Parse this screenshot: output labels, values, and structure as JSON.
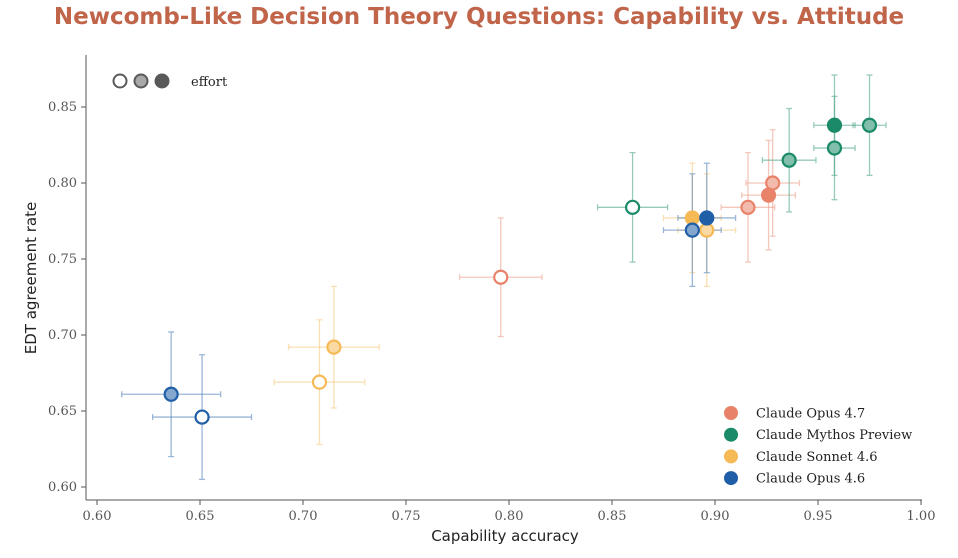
{
  "chart_data": {
    "type": "scatter",
    "title": "Newcomb-Like Decision Theory Questions: Capability vs. Attitude",
    "xlabel": "Capability accuracy",
    "ylabel": "EDT agreement rate",
    "xlim": [
      0.6,
      1.0
    ],
    "ylim": [
      0.6,
      0.87
    ],
    "xticks": [
      "0.60",
      "0.65",
      "0.70",
      "0.75",
      "0.80",
      "0.85",
      "0.90",
      "0.95",
      "1.00"
    ],
    "yticks": [
      "0.60",
      "0.65",
      "0.70",
      "0.75",
      "0.80",
      "0.85"
    ],
    "effort_legend": {
      "label": "effort",
      "levels": [
        "low",
        "medium",
        "high"
      ]
    },
    "series": [
      {
        "name": "Claude Opus 4.7",
        "color": "#e8836a",
        "points": [
          {
            "effort": "low",
            "x": 0.796,
            "y": 0.738,
            "xerr": 0.02,
            "yerr": 0.039
          },
          {
            "effort": "medium",
            "x": 0.916,
            "y": 0.784,
            "xerr": 0.013,
            "yerr": 0.036
          },
          {
            "effort": "medium",
            "x": 0.928,
            "y": 0.8,
            "xerr": 0.013,
            "yerr": 0.035
          },
          {
            "effort": "high",
            "x": 0.926,
            "y": 0.792,
            "xerr": 0.013,
            "yerr": 0.036
          }
        ]
      },
      {
        "name": "Claude Mythos Preview",
        "color": "#1a8a68",
        "points": [
          {
            "effort": "low",
            "x": 0.86,
            "y": 0.784,
            "xerr": 0.017,
            "yerr": 0.036
          },
          {
            "effort": "medium",
            "x": 0.936,
            "y": 0.815,
            "xerr": 0.013,
            "yerr": 0.034
          },
          {
            "effort": "medium",
            "x": 0.958,
            "y": 0.823,
            "xerr": 0.01,
            "yerr": 0.034
          },
          {
            "effort": "medium",
            "x": 0.975,
            "y": 0.838,
            "xerr": 0.008,
            "yerr": 0.033
          },
          {
            "effort": "high",
            "x": 0.958,
            "y": 0.838,
            "xerr": 0.01,
            "yerr": 0.033
          }
        ]
      },
      {
        "name": "Claude Sonnet 4.6",
        "color": "#f5b955",
        "points": [
          {
            "effort": "low",
            "x": 0.708,
            "y": 0.669,
            "xerr": 0.022,
            "yerr": 0.041
          },
          {
            "effort": "medium",
            "x": 0.715,
            "y": 0.692,
            "xerr": 0.022,
            "yerr": 0.04
          },
          {
            "effort": "medium",
            "x": 0.896,
            "y": 0.769,
            "xerr": 0.014,
            "yerr": 0.037
          },
          {
            "effort": "high",
            "x": 0.889,
            "y": 0.777,
            "xerr": 0.014,
            "yerr": 0.036
          }
        ]
      },
      {
        "name": "Claude Opus 4.6",
        "color": "#1f5fa8",
        "points": [
          {
            "effort": "low",
            "x": 0.651,
            "y": 0.646,
            "xerr": 0.024,
            "yerr": 0.041
          },
          {
            "effort": "medium",
            "x": 0.636,
            "y": 0.661,
            "xerr": 0.024,
            "yerr": 0.041
          },
          {
            "effort": "medium",
            "x": 0.889,
            "y": 0.769,
            "xerr": 0.014,
            "yerr": 0.037
          },
          {
            "effort": "high",
            "x": 0.896,
            "y": 0.777,
            "xerr": 0.014,
            "yerr": 0.036
          }
        ]
      }
    ]
  }
}
